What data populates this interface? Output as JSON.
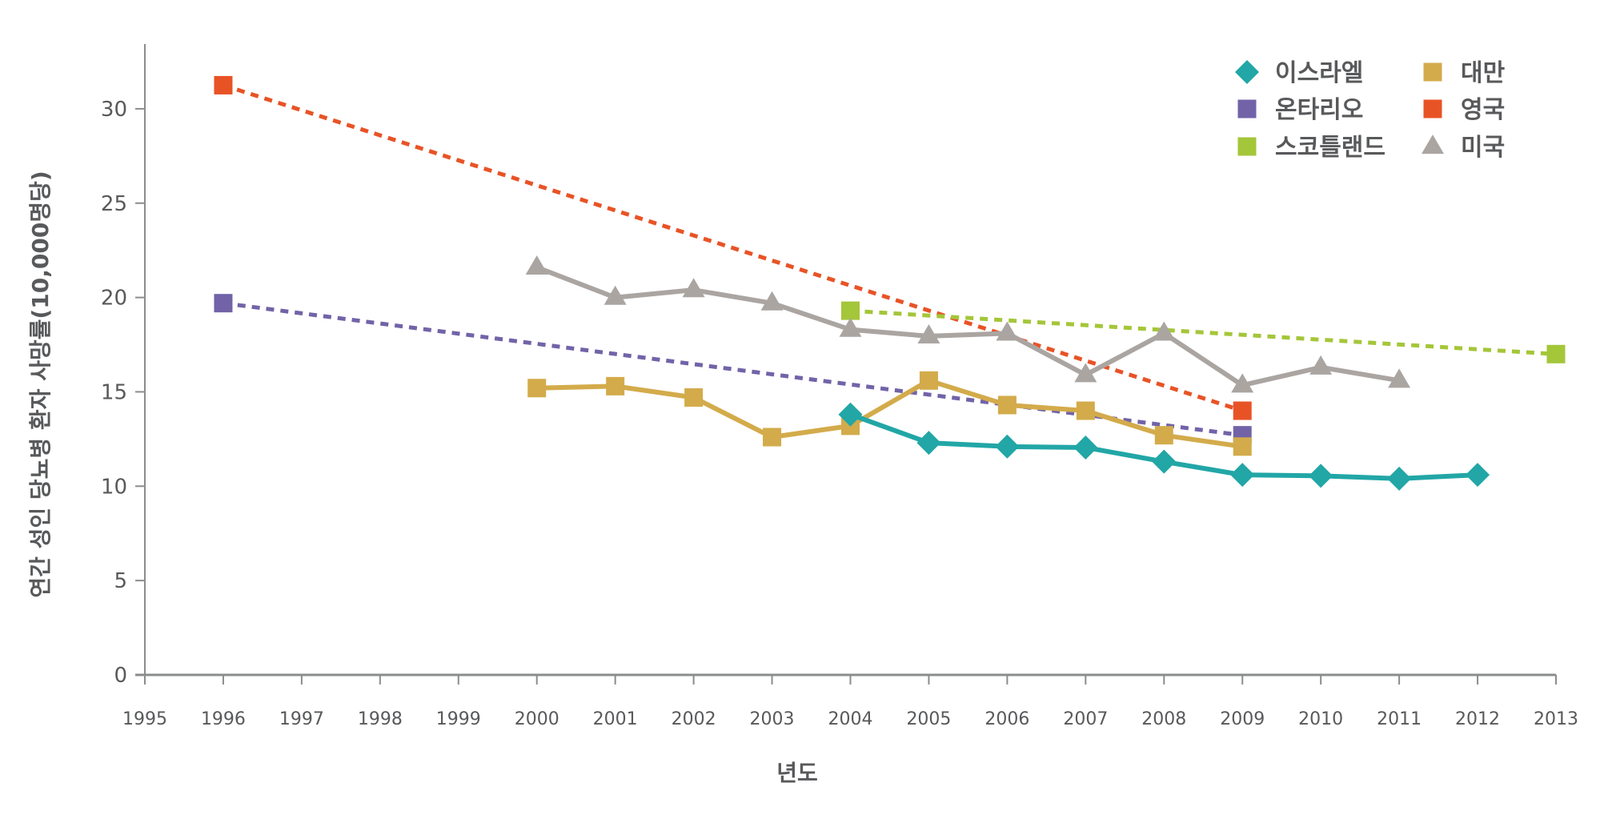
{
  "chart_data": {
    "type": "line",
    "title": "",
    "xlabel": "년도",
    "ylabel": "연간 성인 당뇨병 환자 사망률(10,000명당)",
    "xlim": [
      1995,
      2013
    ],
    "ylim": [
      0,
      33
    ],
    "x_ticks": [
      "1995",
      "1996",
      "1997",
      "1998",
      "1999",
      "2000",
      "2001",
      "2002",
      "2003",
      "2004",
      "2005",
      "2006",
      "2007",
      "2008",
      "2009",
      "2010",
      "2011",
      "2012",
      "2013"
    ],
    "y_ticks": [
      0,
      5,
      10,
      15,
      20,
      25,
      30
    ],
    "grid": false,
    "legend_position": "top-right",
    "series": [
      {
        "name": "이스라엘",
        "color": "#22a6a6",
        "marker": "diamond",
        "line": "solid",
        "x": [
          2004,
          2005,
          2006,
          2007,
          2008,
          2009,
          2010,
          2011,
          2012
        ],
        "y": [
          13.8,
          12.3,
          12.1,
          12.05,
          11.3,
          10.6,
          10.55,
          10.4,
          10.6
        ]
      },
      {
        "name": "온타리오",
        "color": "#7263a8",
        "marker": "square",
        "line": "dotted",
        "x": [
          1996,
          2009
        ],
        "y": [
          19.7,
          12.7
        ]
      },
      {
        "name": "스코틀랜드",
        "color": "#a4c639",
        "marker": "square",
        "line": "dotted",
        "x": [
          2004,
          2013
        ],
        "y": [
          19.3,
          17.0
        ]
      },
      {
        "name": "대만",
        "color": "#d3ab4b",
        "marker": "square",
        "line": "solid",
        "x": [
          2000,
          2001,
          2002,
          2003,
          2004,
          2005,
          2006,
          2007,
          2008,
          2009
        ],
        "y": [
          15.2,
          15.3,
          14.7,
          12.6,
          13.2,
          15.6,
          14.3,
          14.0,
          12.7,
          12.1
        ]
      },
      {
        "name": "영국",
        "color": "#e85326",
        "marker": "square",
        "line": "dotted",
        "x": [
          1996,
          2009
        ],
        "y": [
          31.25,
          14.0
        ]
      },
      {
        "name": "미국",
        "color": "#aba5a2",
        "marker": "triangle",
        "line": "solid",
        "x": [
          2000,
          2001,
          2002,
          2003,
          2004,
          2005,
          2006,
          2007,
          2008,
          2009,
          2010,
          2011
        ],
        "y": [
          21.6,
          20.0,
          20.4,
          19.7,
          18.3,
          17.95,
          18.1,
          15.9,
          18.1,
          15.35,
          16.3,
          15.6
        ]
      }
    ]
  }
}
